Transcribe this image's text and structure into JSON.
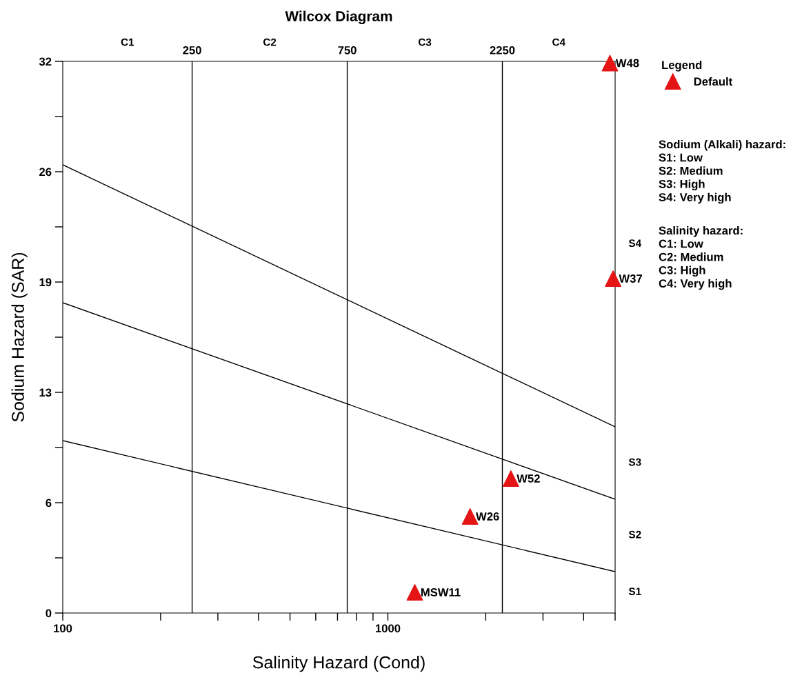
{
  "chart_data": {
    "type": "scatter",
    "title": "Wilcox Diagram",
    "xlabel": "Salinity Hazard (Cond)",
    "ylabel": "Sodium Hazard (SAR)",
    "legend_title": "Legend",
    "log": "x",
    "xlim": [
      100,
      5000
    ],
    "ylim": [
      0,
      32
    ],
    "xticks": [
      100,
      {
        "value": 200,
        "label": null
      },
      {
        "value": 300,
        "label": null
      },
      {
        "value": 400,
        "label": null
      },
      {
        "value": 500,
        "label": null
      },
      {
        "value": 600,
        "label": null
      },
      {
        "value": 700,
        "label": null
      },
      {
        "value": 800,
        "label": null
      },
      {
        "value": 900,
        "label": null
      },
      1000,
      {
        "value": 2000,
        "label": null
      },
      {
        "value": 3000,
        "label": null
      },
      {
        "value": 4000,
        "label": null
      },
      {
        "value": 5000,
        "label": null
      }
    ],
    "yticks": [
      0,
      {
        "value": 3.2,
        "label": null
      },
      {
        "value": 6.4,
        "label": "6"
      },
      {
        "value": 9.6,
        "label": null
      },
      {
        "value": 12.8,
        "label": "13"
      },
      {
        "value": 16,
        "label": null
      },
      {
        "value": 19.2,
        "label": "19"
      },
      {
        "value": 22.4,
        "label": null
      },
      {
        "value": 25.6,
        "label": "26"
      },
      {
        "value": 28.8,
        "label": null
      },
      32
    ],
    "grid": false,
    "legend": "top right",
    "marker": "triangle",
    "series": [
      {
        "type": "line",
        "marker": "none",
        "color": "#000000",
        "x": [
          100,
          5000
        ],
        "values": [
          10,
          2.4
        ]
      },
      {
        "type": "line",
        "marker": "none",
        "color": "#000000",
        "x": [
          100,
          5000
        ],
        "values": [
          18,
          6.6
        ]
      },
      {
        "type": "line",
        "marker": "none",
        "color": "#000000",
        "x": [
          100,
          5000
        ],
        "values": [
          26,
          10.8
        ]
      },
      {
        "name": "Default",
        "color": "#e51515",
        "x": [
          4820,
          4930,
          2390,
          1790,
          1210
        ],
        "values": [
          31.9,
          19.4,
          7.8,
          5.6,
          1.2
        ]
      }
    ],
    "ref_lines": [
      {
        "axis": "x",
        "value": 250,
        "label": "250",
        "color": "#000000"
      },
      {
        "axis": "x",
        "value": 750,
        "label": "750",
        "color": "#000000"
      },
      {
        "axis": "x",
        "value": 2250,
        "label": "2250",
        "color": "#000000"
      }
    ],
    "annotations": [
      {
        "text": "W48",
        "x": 4820,
        "y": 31.9
      },
      {
        "text": "W37",
        "x": 4930,
        "y": 19.4
      },
      {
        "text": "W52",
        "x": 2390,
        "y": 7.8
      },
      {
        "text": "W26",
        "x": 1790,
        "y": 5.6
      },
      {
        "text": "MSW11",
        "x": 1210,
        "y": 1.2
      },
      "C1",
      "C2",
      "C3",
      "C4",
      "S1",
      "S2",
      "S3",
      "S4",
      "Sodium (Alkali) hazard:\nS1: Low\nS2: Medium\nS3: High\nS4: Very high",
      "Salinity hazard:\nC1: Low\nC2: Medium\nC3: High\nC4: Very high"
    ]
  }
}
